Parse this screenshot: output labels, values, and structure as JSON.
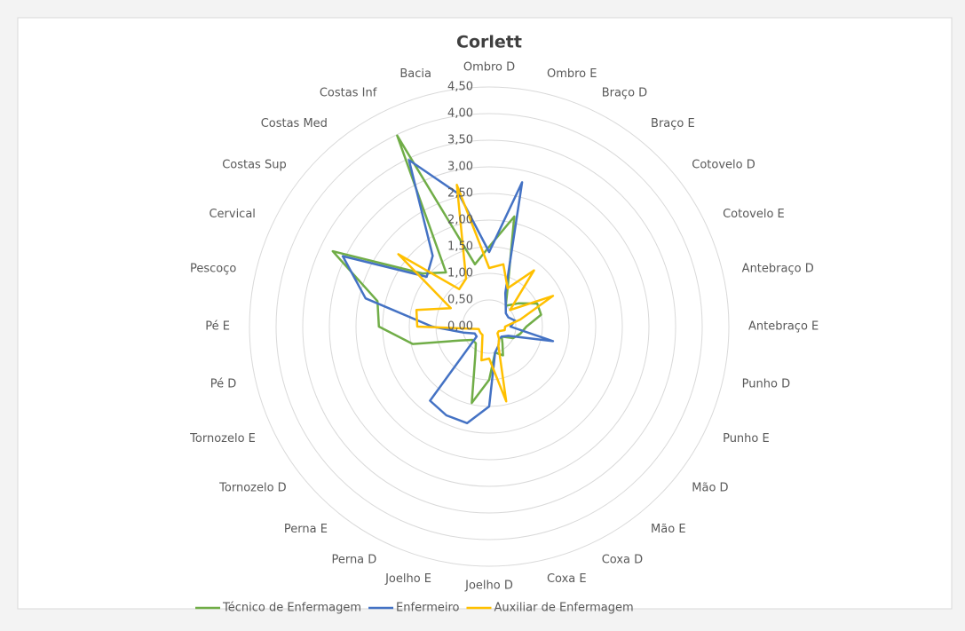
{
  "chart_data": {
    "type": "radar",
    "title": "Corlett",
    "categories": [
      "Ombro D",
      "Ombro E",
      "Braço D",
      "Braço E",
      "Cotovelo D",
      "Cotovelo E",
      "Antebraço D",
      "Antebraço E",
      "Punho D",
      "Punho E",
      "Mão D",
      "Mão E",
      "Coxa D",
      "Coxa E",
      "Joelho D",
      "Joelho E",
      "Perna D",
      "Perna E",
      "Tornozelo D",
      "Tornozelo E",
      "Pé D",
      "Pé E",
      "Pescoço",
      "Cervical",
      "Costas Sup",
      "Costas Med",
      "Costas Inf",
      "Bacia"
    ],
    "series": [
      {
        "name": "Técnico de Enfermagem",
        "color": "#70ad47",
        "values": [
          1.5,
          2.12,
          0.8,
          0.5,
          0.7,
          1.0,
          1.0,
          0.7,
          0.6,
          0.5,
          0.3,
          0.4,
          0.6,
          0.5,
          1.0,
          1.47,
          0.6,
          0.4,
          0.4,
          0.6,
          1.47,
          2.07,
          2.15,
          3.26,
          1.6,
          1.3,
          3.98,
          1.2
        ]
      },
      {
        "name": "Enfermeiro",
        "color": "#4472c4",
        "values": [
          1.4,
          2.78,
          0.7,
          0.5,
          0.4,
          0.4,
          0.5,
          0.4,
          1.23,
          0.4,
          0.3,
          0.3,
          0.4,
          0.5,
          1.5,
          1.86,
          1.85,
          1.78,
          0.3,
          0.3,
          0.5,
          1.07,
          2.38,
          3.05,
          1.5,
          1.7,
          3.47,
          2.55
        ]
      },
      {
        "name": "Auxiliar de Enfermagem",
        "color": "#ffc000",
        "values": [
          1.1,
          1.2,
          0.8,
          1.35,
          0.5,
          1.33,
          0.6,
          0.3,
          0.3,
          0.2,
          0.2,
          0.3,
          0.4,
          1.44,
          0.6,
          0.65,
          0.3,
          0.2,
          0.2,
          0.2,
          0.2,
          1.35,
          1.4,
          0.8,
          2.18,
          0.9,
          1.0,
          2.73
        ]
      }
    ],
    "ylim": [
      0,
      4.5
    ],
    "yticks": [
      {
        "value": 0,
        "label": "0,00"
      },
      {
        "value": 0.5,
        "label": "0,50"
      },
      {
        "value": 1,
        "label": "1,00"
      },
      {
        "value": 1.5,
        "label": "1,50"
      },
      {
        "value": 2,
        "label": "2,00"
      },
      {
        "value": 2.5,
        "label": "2,50"
      },
      {
        "value": 3,
        "label": "3,00"
      },
      {
        "value": 3.5,
        "label": "3,50"
      },
      {
        "value": 4,
        "label": "4,00"
      },
      {
        "value": 4.5,
        "label": "4,50"
      }
    ],
    "grid": true,
    "legend": "bottom"
  }
}
